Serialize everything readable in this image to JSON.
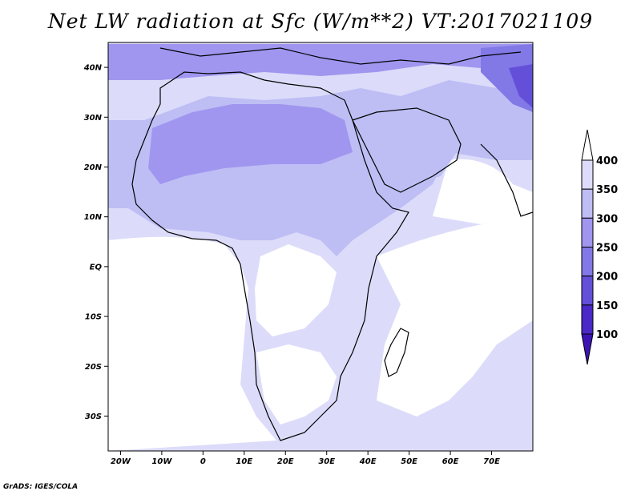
{
  "title": "Net LW radiation at Sfc (W/m**2) VT:2017021109",
  "footer": "GrADS: IGES/COLA",
  "map": {
    "lon_range": [
      -23,
      80
    ],
    "lat_range": [
      -37,
      45
    ],
    "lat_ticks": [
      {
        "value": 40,
        "label": "40N"
      },
      {
        "value": 30,
        "label": "30N"
      },
      {
        "value": 20,
        "label": "20N"
      },
      {
        "value": 10,
        "label": "10N"
      },
      {
        "value": 0,
        "label": "EQ"
      },
      {
        "value": -10,
        "label": "10S"
      },
      {
        "value": -20,
        "label": "20S"
      },
      {
        "value": -30,
        "label": "30S"
      }
    ],
    "lon_ticks": [
      {
        "value": -20,
        "label": "20W"
      },
      {
        "value": -10,
        "label": "10W"
      },
      {
        "value": 0,
        "label": "0"
      },
      {
        "value": 10,
        "label": "10E"
      },
      {
        "value": 20,
        "label": "20E"
      },
      {
        "value": 30,
        "label": "30E"
      },
      {
        "value": 40,
        "label": "40E"
      },
      {
        "value": 50,
        "label": "50E"
      },
      {
        "value": 60,
        "label": "60E"
      },
      {
        "value": 70,
        "label": "70E"
      }
    ]
  },
  "colorbar": {
    "levels": [
      "100",
      "150",
      "200",
      "250",
      "300",
      "350",
      "400"
    ],
    "colors": [
      "#ffffff",
      "#dcdcfa",
      "#bebef5",
      "#a096f0",
      "#8278e6",
      "#6450d8",
      "#4b28c8",
      "#3c14b4"
    ]
  }
}
